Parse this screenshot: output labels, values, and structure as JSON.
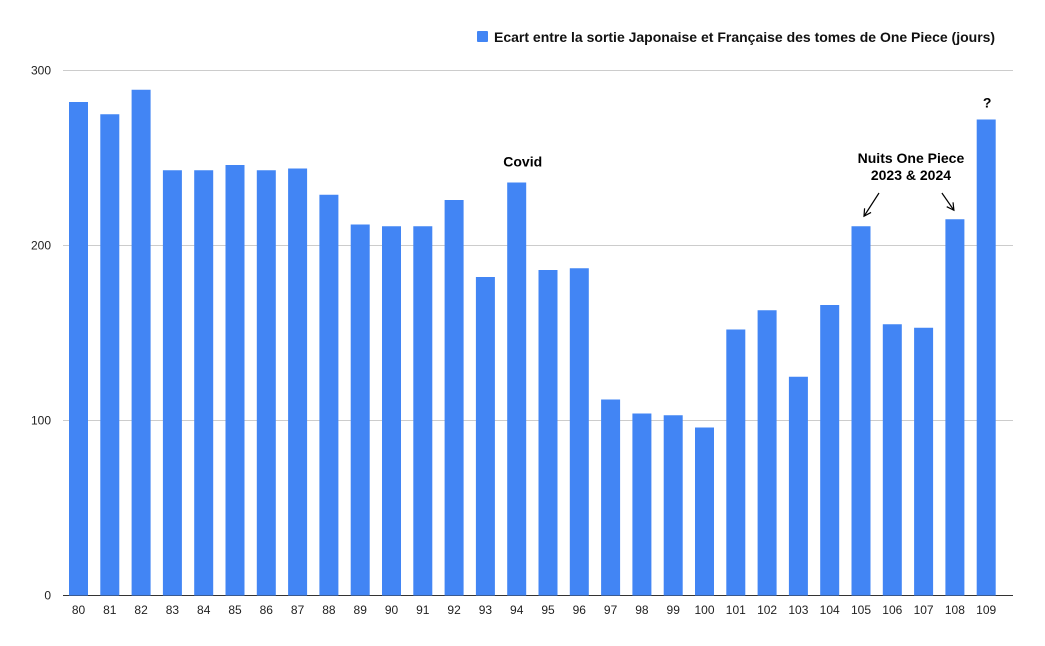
{
  "chart_data": {
    "type": "bar",
    "series": [
      {
        "name": "Ecart entre la sortie Japonaise et Française des tomes de One Piece (jours)",
        "color": "#4285f4",
        "values": [
          282,
          275,
          289,
          243,
          243,
          246,
          243,
          244,
          229,
          212,
          211,
          211,
          226,
          182,
          236,
          186,
          187,
          112,
          104,
          103,
          96,
          152,
          163,
          125,
          166,
          211,
          155,
          153,
          215,
          272
        ]
      }
    ],
    "categories": [
      "80",
      "81",
      "82",
      "83",
      "84",
      "85",
      "86",
      "87",
      "88",
      "89",
      "90",
      "91",
      "92",
      "93",
      "94",
      "95",
      "96",
      "97",
      "98",
      "99",
      "100",
      "101",
      "102",
      "103",
      "104",
      "105",
      "106",
      "107",
      "108",
      "109"
    ],
    "yticks": [
      "0",
      "100",
      "200",
      "300"
    ],
    "ylim": [
      0,
      300
    ],
    "grid": true,
    "legend_position": "top",
    "annotations": [
      {
        "text": "Covid",
        "category": "94"
      },
      {
        "text": "Nuits One Piece",
        "text2": "2023 & 2024",
        "categories": [
          "105",
          "108"
        ]
      },
      {
        "text": "?",
        "category": "109"
      }
    ]
  }
}
